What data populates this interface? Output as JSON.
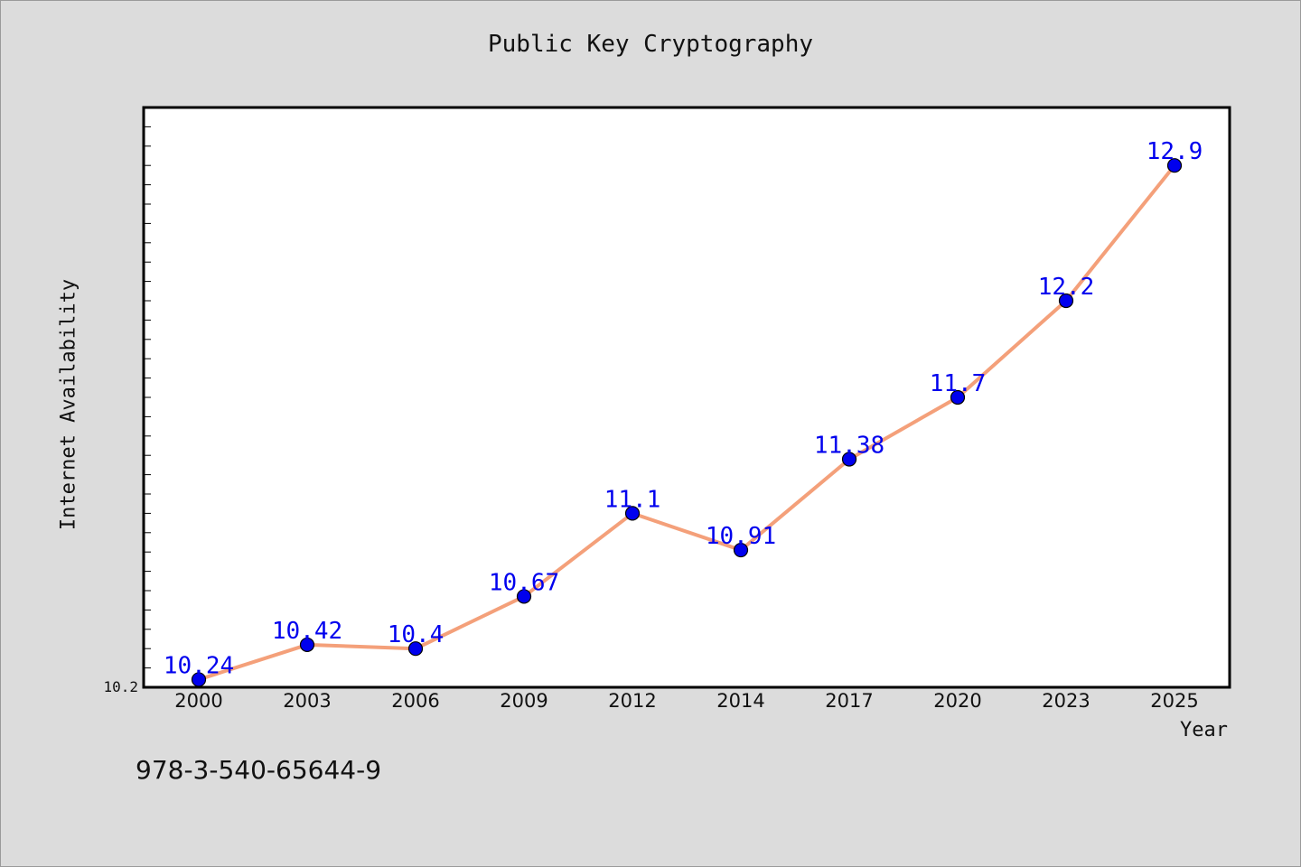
{
  "chart_data": {
    "type": "line",
    "title": "Public Key Cryptography",
    "xlabel": "Year",
    "ylabel": "Internet Availability",
    "categories": [
      "2000",
      "2003",
      "2006",
      "2009",
      "2012",
      "2014",
      "2017",
      "2020",
      "2023",
      "2025"
    ],
    "series": [
      {
        "values": [
          10.24,
          10.42,
          10.4,
          10.67,
          11.1,
          10.91,
          11.38,
          11.7,
          12.2,
          12.9
        ],
        "labels": [
          "10.24",
          "10.42",
          "10.4",
          "10.67",
          "11.1",
          "10.91",
          "11.38",
          "11.7",
          "12.2",
          "12.9"
        ],
        "line_color": "#f4a07a",
        "marker_color": "#0000ee",
        "label_color": "#0000ee"
      }
    ],
    "y_tick_labels": [
      "10.2"
    ],
    "ylim": [
      10.2,
      13.2
    ],
    "grid": false,
    "legend": "none"
  },
  "footer_text": "978-3-540-65644-9",
  "colors": {
    "background": "#dcdcdc",
    "plot_background": "#ffffff",
    "axis": "#000000"
  }
}
